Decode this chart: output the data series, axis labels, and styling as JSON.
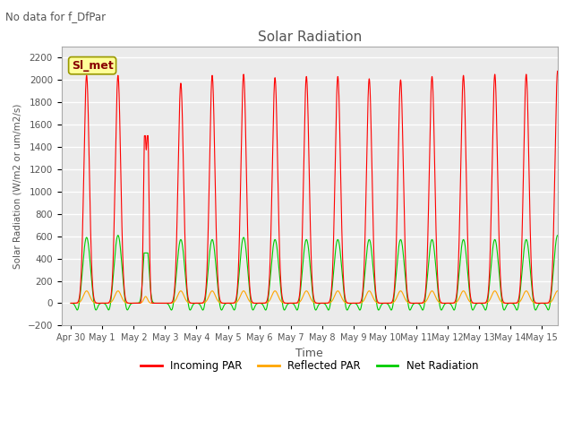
{
  "title": "Solar Radiation",
  "suptitle": "No data for f_DfPar",
  "xlabel": "Time",
  "ylabel": "Solar Radiation (W/m2 or um/m2/s)",
  "ylim": [
    -200,
    2300
  ],
  "yticks": [
    -200,
    0,
    200,
    400,
    600,
    800,
    1000,
    1200,
    1400,
    1600,
    1800,
    2000,
    2200
  ],
  "peak_incoming": [
    2040,
    2040,
    1500,
    1970,
    2040,
    2050,
    2020,
    2030,
    2030,
    2010,
    2000,
    2030,
    2040,
    2050,
    2050,
    2080
  ],
  "peak_net": [
    620,
    640,
    430,
    600,
    600,
    620,
    600,
    600,
    600,
    600,
    600,
    600,
    600,
    600,
    600,
    640
  ],
  "peak_reflected": [
    110,
    110,
    75,
    110,
    110,
    110,
    110,
    110,
    110,
    110,
    110,
    110,
    110,
    110,
    110,
    110
  ],
  "color_incoming": "#ff0000",
  "color_reflected": "#ffa500",
  "color_net": "#00cc00",
  "bg_plot": "#ebebeb",
  "bg_fig": "#ffffff",
  "legend_box_color": "#ffff99",
  "legend_box_edge": "#999900",
  "legend_label": "Sl_met",
  "grid_color": "#ffffff",
  "tick_label_color": "#555555",
  "title_color": "#555555"
}
